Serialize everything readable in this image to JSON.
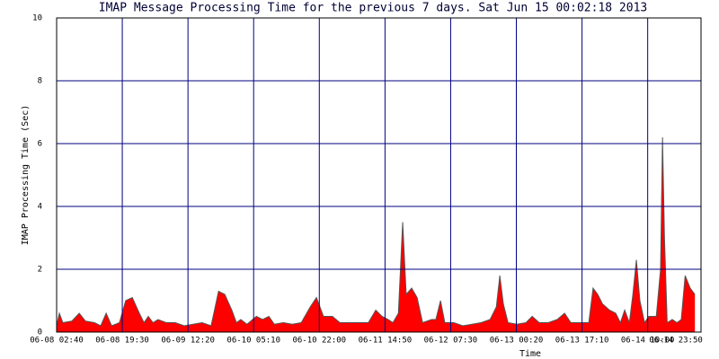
{
  "chart_data": {
    "type": "area",
    "title": "IMAP Message Processing Time for the previous 7 days. Sat Jun 15 00:02:18 2013",
    "y_label": "IMAP Processing Time (Sec)",
    "x_label": "Time",
    "color": "#ff0000",
    "grid": true,
    "ylim": [
      0,
      10
    ],
    "yticks": [
      0,
      2,
      4,
      6,
      8,
      10
    ],
    "xlim": [
      0,
      165.17
    ],
    "xticks": [
      {
        "value": 0,
        "label": "06-08 02:40"
      },
      {
        "value": 16.83,
        "label": "06-08 19:30"
      },
      {
        "value": 33.67,
        "label": "06-09 12:20"
      },
      {
        "value": 50.5,
        "label": "06-10 05:10"
      },
      {
        "value": 67.33,
        "label": "06-10 22:00"
      },
      {
        "value": 84.17,
        "label": "06-11 14:50"
      },
      {
        "value": 101,
        "label": "06-12 07:30"
      },
      {
        "value": 117.83,
        "label": "06-13 00:20"
      },
      {
        "value": 134.67,
        "label": "06-13 17:10"
      },
      {
        "value": 151.5,
        "label": "06-14 10:00"
      },
      {
        "value": 165.17,
        "label": "06-14 23:50"
      }
    ],
    "x": [
      0,
      0.7,
      1.6,
      3.9,
      5.8,
      7.4,
      9.7,
      11.3,
      12.7,
      14.1,
      16.1,
      17.7,
      19.4,
      21.2,
      22.4,
      23.5,
      24.7,
      26.0,
      28.1,
      30.4,
      32.7,
      35.0,
      37.3,
      39.6,
      41.5,
      43.1,
      44.9,
      46.1,
      47.2,
      48.8,
      51.2,
      52.8,
      54.4,
      55.8,
      58.1,
      60.4,
      62.7,
      65.0,
      66.6,
      68.4,
      70.7,
      72.6,
      75.3,
      77.6,
      79.9,
      81.8,
      83.4,
      85.0,
      86.2,
      87.6,
      88.7,
      89.6,
      91.0,
      92.4,
      93.8,
      96.1,
      97.2,
      98.4,
      99.5,
      101.8,
      104.1,
      106.5,
      108.8,
      111.1,
      112.7,
      113.6,
      114.5,
      115.7,
      118.0,
      120.3,
      121.9,
      123.7,
      126.0,
      128.3,
      130.2,
      131.8,
      134.1,
      136.4,
      137.5,
      138.7,
      139.9,
      141.7,
      143.3,
      144.5,
      145.6,
      146.8,
      147.7,
      148.6,
      149.5,
      150.7,
      151.8,
      153.7,
      154.8,
      155.3,
      155.8,
      156.5,
      157.8,
      159.0,
      160.1,
      161.1,
      162.4,
      163.6
    ],
    "values": [
      0.2,
      0.6,
      0.3,
      0.35,
      0.6,
      0.35,
      0.3,
      0.2,
      0.6,
      0.2,
      0.3,
      1.0,
      1.1,
      0.6,
      0.3,
      0.5,
      0.3,
      0.4,
      0.3,
      0.3,
      0.2,
      0.25,
      0.3,
      0.2,
      1.3,
      1.2,
      0.7,
      0.3,
      0.4,
      0.25,
      0.5,
      0.4,
      0.5,
      0.25,
      0.3,
      0.25,
      0.3,
      0.8,
      1.1,
      0.5,
      0.5,
      0.3,
      0.3,
      0.3,
      0.3,
      0.7,
      0.5,
      0.4,
      0.3,
      0.6,
      3.5,
      1.2,
      1.4,
      1.1,
      0.3,
      0.4,
      0.4,
      1.0,
      0.3,
      0.3,
      0.2,
      0.25,
      0.3,
      0.4,
      0.8,
      1.8,
      0.9,
      0.3,
      0.25,
      0.3,
      0.5,
      0.3,
      0.3,
      0.4,
      0.6,
      0.3,
      0.3,
      0.3,
      1.4,
      1.2,
      0.9,
      0.7,
      0.6,
      0.3,
      0.7,
      0.3,
      1.2,
      2.3,
      1.0,
      0.3,
      0.5,
      0.5,
      2.0,
      6.2,
      3.0,
      0.3,
      0.4,
      0.3,
      0.4,
      1.8,
      1.4,
      1.2
    ]
  }
}
